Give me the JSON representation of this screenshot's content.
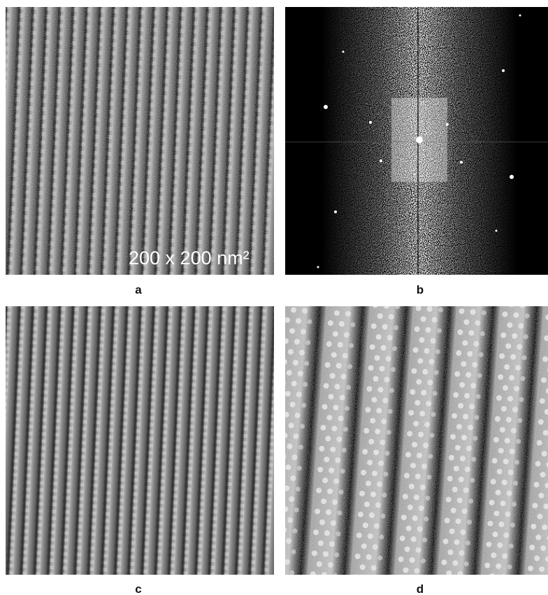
{
  "panels": [
    {
      "label": "a",
      "scale_label": "200 x 200 nm²"
    },
    {
      "label": "b"
    },
    {
      "label": "c"
    },
    {
      "label": "d"
    }
  ]
}
